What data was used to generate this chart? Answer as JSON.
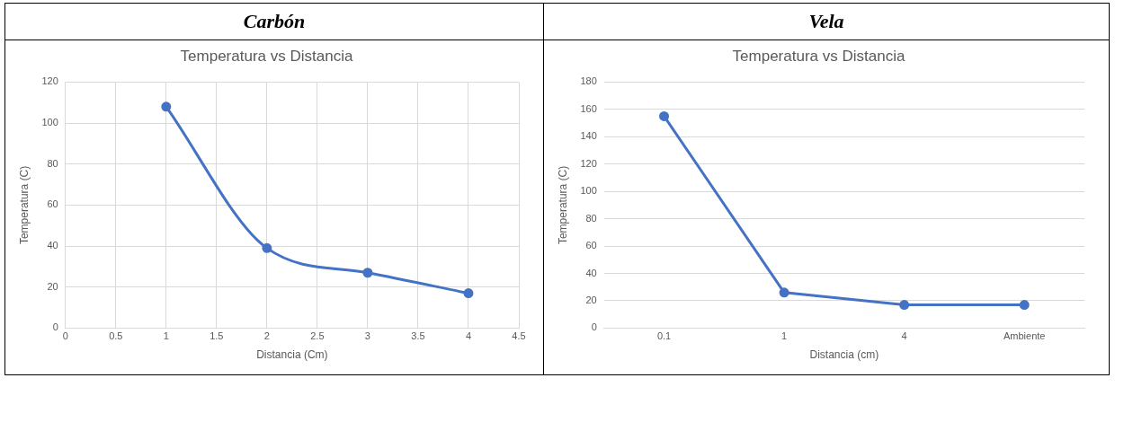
{
  "chart_data": [
    {
      "type": "line",
      "title": "Carbón",
      "subtitle": "Temperatura vs Distancia",
      "xlabel": "Distancia (Cm)",
      "ylabel": "Temperatura (C)",
      "x": [
        1,
        2,
        3,
        4
      ],
      "series": [
        {
          "color": "#4472c4",
          "values": [
            108,
            39,
            27,
            17
          ]
        }
      ],
      "xlim": [
        0,
        4.5
      ],
      "xticks": [
        0,
        0.5,
        1,
        1.5,
        2,
        2.5,
        3,
        3.5,
        4,
        4.5
      ],
      "ylim": [
        0,
        120
      ],
      "yticks": [
        0,
        20,
        40,
        60,
        80,
        100,
        120
      ],
      "grid": true,
      "marker": "circle",
      "legend": false
    },
    {
      "type": "line",
      "title": "Vela",
      "subtitle": "Temperatura vs Distancia",
      "xlabel": "Distancia (cm)",
      "ylabel": "Temperatura (C)",
      "categories": [
        "0.1",
        "1",
        "4",
        "Ambiente"
      ],
      "series": [
        {
          "color": "#4472c4",
          "values": [
            155,
            26,
            17,
            17
          ]
        }
      ],
      "ylim": [
        0,
        180
      ],
      "yticks": [
        0,
        20,
        40,
        60,
        80,
        100,
        120,
        140,
        160,
        180
      ],
      "grid": "y",
      "marker": "circle",
      "legend": false
    }
  ]
}
